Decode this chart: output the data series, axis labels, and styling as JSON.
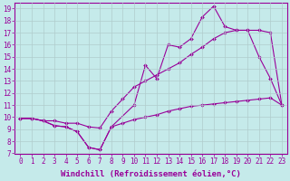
{
  "xlabel": "Windchill (Refroidissement éolien,°C)",
  "background_color": "#c5eaea",
  "grid_color": "#b0cccc",
  "line_color": "#990099",
  "xlim": [
    -0.5,
    23.5
  ],
  "ylim": [
    7,
    19.5
  ],
  "xticks": [
    0,
    1,
    2,
    3,
    4,
    5,
    6,
    7,
    8,
    9,
    10,
    11,
    12,
    13,
    14,
    15,
    16,
    17,
    18,
    19,
    20,
    21,
    22,
    23
  ],
  "yticks": [
    7,
    8,
    9,
    10,
    11,
    12,
    13,
    14,
    15,
    16,
    17,
    18,
    19
  ],
  "line1_x": [
    0,
    1,
    2,
    3,
    4,
    5,
    6,
    7,
    8,
    10,
    11,
    12,
    13,
    14,
    15,
    16,
    17,
    18,
    19,
    20,
    21,
    22,
    23
  ],
  "line1_y": [
    9.9,
    9.9,
    9.7,
    9.3,
    9.2,
    8.8,
    7.5,
    7.3,
    9.2,
    11.0,
    14.3,
    13.2,
    16.0,
    15.8,
    16.5,
    18.3,
    19.2,
    17.5,
    17.2,
    17.2,
    15.0,
    13.2,
    11.0
  ],
  "line2_x": [
    0,
    1,
    2,
    3,
    4,
    5,
    6,
    7,
    8,
    9,
    10,
    11,
    12,
    13,
    14,
    15,
    16,
    17,
    18,
    19,
    20,
    21,
    22,
    23
  ],
  "line2_y": [
    9.9,
    9.9,
    9.7,
    9.7,
    9.5,
    9.5,
    9.2,
    9.1,
    10.5,
    11.5,
    12.5,
    13.0,
    13.5,
    14.0,
    14.5,
    15.2,
    15.8,
    16.5,
    17.0,
    17.2,
    17.2,
    17.2,
    17.0,
    11.0
  ],
  "line3_x": [
    0,
    1,
    2,
    3,
    4,
    5,
    6,
    7,
    8,
    9,
    10,
    11,
    12,
    13,
    14,
    15,
    16,
    17,
    18,
    19,
    20,
    21,
    22,
    23
  ],
  "line3_y": [
    9.9,
    9.9,
    9.7,
    9.3,
    9.2,
    8.8,
    7.5,
    7.3,
    9.2,
    9.5,
    9.8,
    10.0,
    10.2,
    10.5,
    10.7,
    10.9,
    11.0,
    11.1,
    11.2,
    11.3,
    11.4,
    11.5,
    11.6,
    11.0
  ],
  "font_family": "monospace",
  "tick_fontsize": 5.5,
  "label_fontsize": 6.5
}
